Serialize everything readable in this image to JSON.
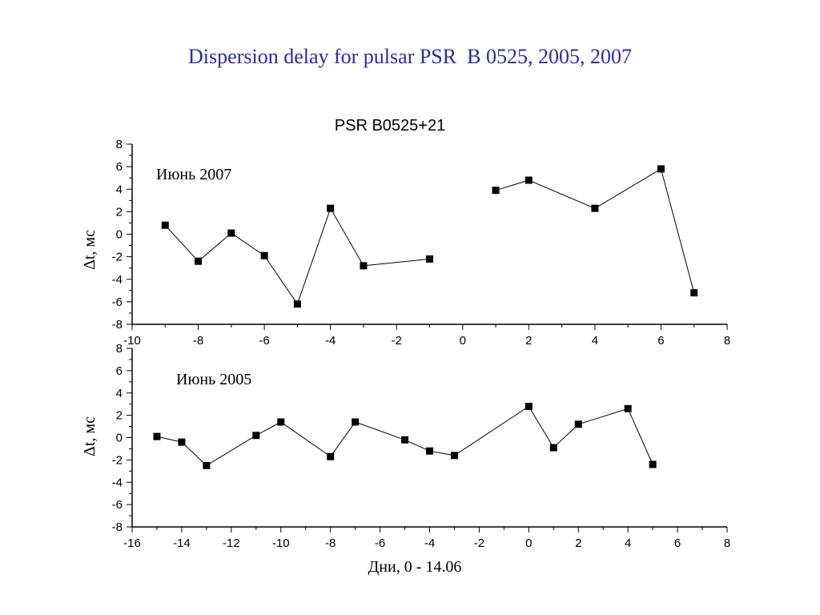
{
  "slide": {
    "title": "Dispersion delay for pulsar PSR  B 0525, 2005, 2007"
  },
  "chart_data": [
    {
      "type": "scatter",
      "title": "PSR B0525+21",
      "annotation": "Июнь 2007",
      "xlabel": "",
      "ylabel": "Δt, мс",
      "xlim": [
        -10,
        8
      ],
      "ylim": [
        -8,
        8
      ],
      "xticks": [
        -10,
        -8,
        -6,
        -4,
        -2,
        0,
        2,
        4,
        6,
        8
      ],
      "yticks": [
        -8,
        -6,
        -4,
        -2,
        0,
        2,
        4,
        6,
        8
      ],
      "xtick_labels": [
        "-10",
        "-8",
        "-6",
        "-4",
        "-2",
        "0",
        "2",
        "4",
        "6",
        "8"
      ],
      "ytick_labels": [
        "-8",
        "-6",
        "-4",
        "-2",
        "0",
        "2",
        "4",
        "6",
        "8"
      ],
      "segments": [
        {
          "x": [
            -9,
            -8,
            -7,
            -6,
            -5,
            -4,
            -3,
            -1
          ],
          "y": [
            0.8,
            -2.4,
            0.1,
            -1.9,
            -6.2,
            2.3,
            -2.8,
            -2.2
          ]
        },
        {
          "x": [
            1,
            2,
            4,
            6,
            7
          ],
          "y": [
            3.9,
            4.8,
            2.3,
            5.8,
            -5.2
          ]
        }
      ]
    },
    {
      "type": "scatter",
      "title": "",
      "annotation": "Июнь 2005",
      "xlabel": "Дни, 0 - 14.06",
      "ylabel": "Δt, мс",
      "xlim": [
        -16,
        8
      ],
      "ylim": [
        -8,
        8
      ],
      "xticks": [
        -16,
        -14,
        -12,
        -10,
        -8,
        -6,
        -4,
        -2,
        0,
        2,
        4,
        6,
        8
      ],
      "yticks": [
        -8,
        -6,
        -4,
        -2,
        0,
        2,
        4,
        6,
        8
      ],
      "xtick_labels": [
        "-16",
        "-14",
        "-12",
        "-10",
        "-8",
        "-6",
        "-4",
        "-2",
        "0",
        "2",
        "4",
        "6",
        "8"
      ],
      "ytick_labels": [
        "-8",
        "-6",
        "-4",
        "-2",
        "0",
        "2",
        "4",
        "6",
        "8"
      ],
      "segments": [
        {
          "x": [
            -15,
            -14,
            -13,
            -11,
            -10,
            -8,
            -7,
            -5,
            -4,
            -3,
            0,
            1,
            2,
            4,
            5
          ],
          "y": [
            0.1,
            -0.4,
            -2.5,
            0.2,
            1.4,
            -1.7,
            1.4,
            -0.2,
            -1.2,
            -1.6,
            2.8,
            -0.9,
            1.2,
            2.6,
            -2.4
          ]
        }
      ]
    }
  ]
}
